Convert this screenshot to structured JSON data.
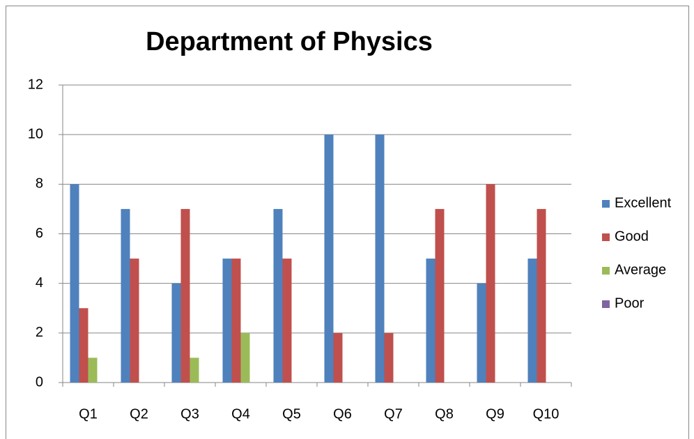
{
  "chart_data": {
    "type": "bar",
    "title": "Department of Physics",
    "categories": [
      "Q1",
      "Q2",
      "Q3",
      "Q4",
      "Q5",
      "Q6",
      "Q7",
      "Q8",
      "Q9",
      "Q10"
    ],
    "series": [
      {
        "name": "Excellent",
        "color": "#4f81bd",
        "values": [
          8,
          7,
          4,
          5,
          7,
          10,
          10,
          5,
          4,
          5
        ]
      },
      {
        "name": "Good",
        "color": "#c0504d",
        "values": [
          3,
          5,
          7,
          5,
          5,
          2,
          2,
          7,
          8,
          7
        ]
      },
      {
        "name": "Average",
        "color": "#9bbb59",
        "values": [
          1,
          0,
          1,
          2,
          0,
          0,
          0,
          0,
          0,
          0
        ]
      },
      {
        "name": "Poor",
        "color": "#8064a2",
        "values": [
          0,
          0,
          0,
          0,
          0,
          0,
          0,
          0,
          0,
          0
        ]
      }
    ],
    "ylim": [
      0,
      12
    ],
    "yticks": [
      0,
      2,
      4,
      6,
      8,
      10,
      12
    ],
    "grid": true,
    "legend": "right"
  }
}
